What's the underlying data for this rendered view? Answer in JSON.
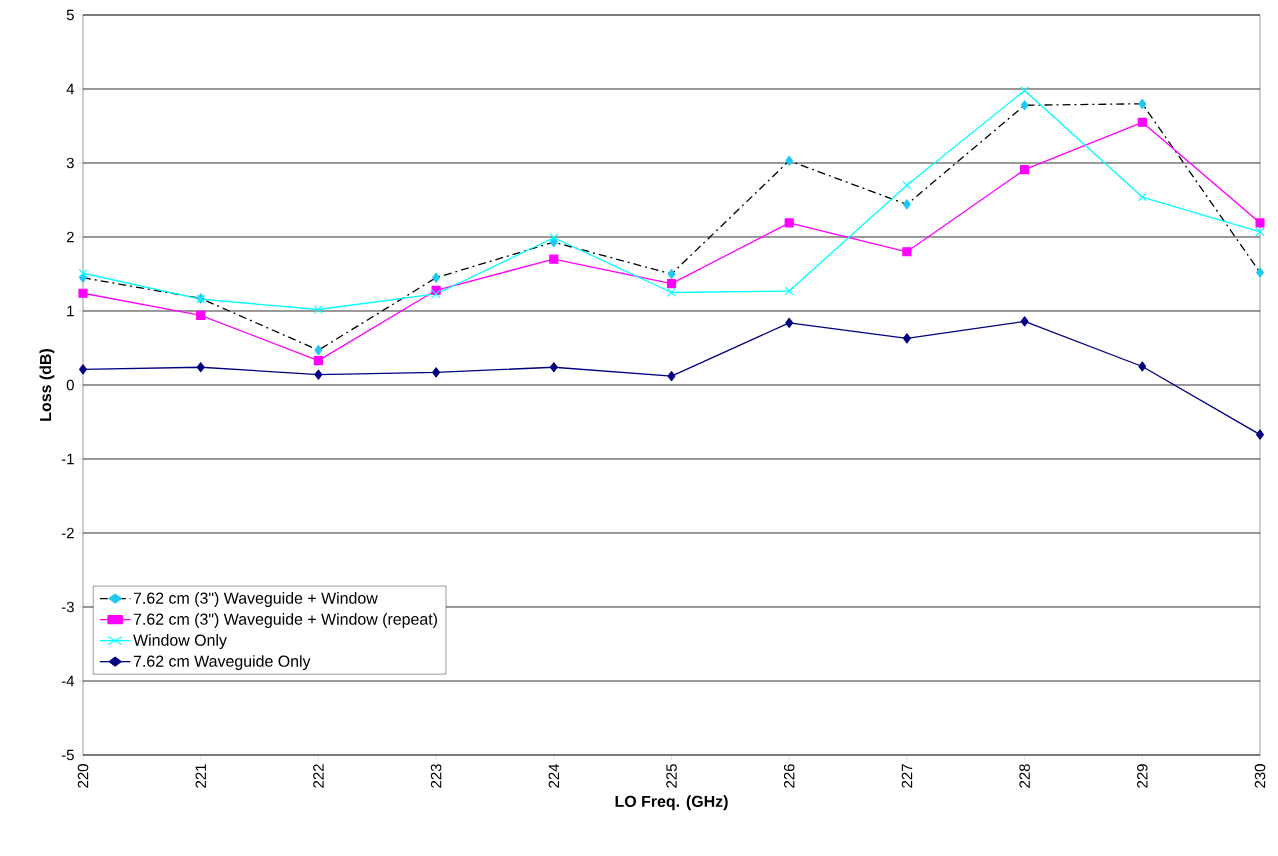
{
  "chart_data": {
    "type": "line",
    "xlabel": "LO Freq. (GHz)",
    "ylabel": "Loss (dB)",
    "x": [
      220,
      221,
      222,
      223,
      224,
      225,
      226,
      227,
      228,
      229,
      230
    ],
    "series": [
      {
        "name": "7.62 cm (3\") Waveguide + Window",
        "color": "#000000",
        "colors": [
          "#1ec8f0",
          "#1ec8f0",
          "#1ec8f0",
          "#1ec8f0",
          "#1ec8f0",
          "#1ec8f0",
          "#1ec8f0",
          "#1ec8f0",
          "#1ec8f0",
          "#1ec8f0",
          "#1ec8f0"
        ],
        "marker": "diamond",
        "line_style": "dashed",
        "values": [
          1.45,
          1.17,
          0.47,
          1.45,
          1.93,
          1.5,
          3.03,
          2.44,
          3.78,
          3.8,
          1.52
        ]
      },
      {
        "name": "7.62 cm (3\") Waveguide + Window (repeat)",
        "color": "#ff00ff",
        "marker": "square",
        "line_style": "solid",
        "values": [
          1.24,
          0.94,
          0.33,
          1.28,
          1.7,
          1.37,
          2.19,
          1.8,
          2.91,
          3.55,
          2.19
        ]
      },
      {
        "name": "Window Only",
        "color": "#00ffff",
        "marker": "cross",
        "line_style": "solid",
        "values": [
          1.51,
          1.16,
          1.02,
          1.23,
          1.99,
          1.25,
          1.27,
          2.7,
          3.98,
          2.54,
          2.07
        ]
      },
      {
        "name": "7.62 cm Waveguide Only",
        "color": "#000080",
        "marker": "diamond",
        "line_style": "solid",
        "values": [
          0.21,
          0.24,
          0.14,
          0.17,
          0.24,
          0.12,
          0.84,
          0.63,
          0.86,
          0.25,
          -0.67
        ]
      }
    ],
    "xlim": [
      220,
      230
    ],
    "xticks": [
      220,
      221,
      222,
      223,
      224,
      225,
      226,
      227,
      228,
      229,
      230
    ],
    "ylim": [
      -5,
      5
    ],
    "yticks": [
      -5,
      -4,
      -3,
      -2,
      -1,
      0,
      1,
      2,
      3,
      4,
      5
    ],
    "grid": "y",
    "legend": "bottom left"
  }
}
